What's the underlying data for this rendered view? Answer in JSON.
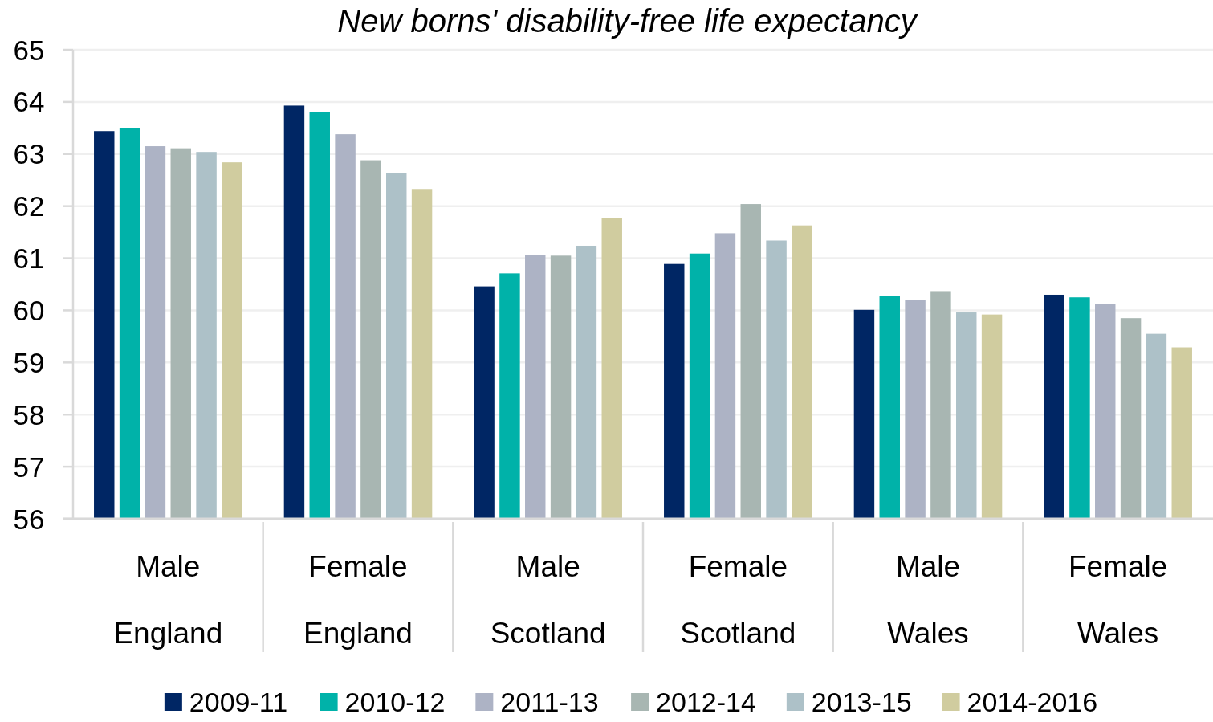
{
  "chart_data": {
    "type": "bar",
    "title": "New borns' disability-free life expectancy",
    "categories": [
      "Male\nEngland",
      "Female\nEngland",
      "Male\nScotland",
      "Female\nScotland",
      "Male\nWales",
      "Female\nWales"
    ],
    "series": [
      {
        "name": "2009-11",
        "color": "#002664",
        "values": [
          63.44,
          63.93,
          60.46,
          60.89,
          60.01,
          60.3
        ]
      },
      {
        "name": "2010-12",
        "color": "#00b2a9",
        "values": [
          63.5,
          63.8,
          60.71,
          61.09,
          60.27,
          60.25
        ]
      },
      {
        "name": "2011-13",
        "color": "#adb3c5",
        "values": [
          63.15,
          63.38,
          61.07,
          61.48,
          60.2,
          60.12
        ]
      },
      {
        "name": "2012-14",
        "color": "#a8b6b2",
        "values": [
          63.11,
          62.88,
          61.05,
          62.04,
          60.37,
          59.85
        ]
      },
      {
        "name": "2013-15",
        "color": "#adc1c8",
        "values": [
          63.04,
          62.64,
          61.24,
          61.34,
          59.96,
          59.55
        ]
      },
      {
        "name": "2014-2016",
        "color": "#d0cc9f",
        "values": [
          62.84,
          62.33,
          61.77,
          61.63,
          59.92,
          59.29
        ]
      }
    ],
    "ylim": [
      56,
      65
    ],
    "yticks": [
      56,
      57,
      58,
      59,
      60,
      61,
      62,
      63,
      64,
      65
    ],
    "grid": "y",
    "legend": "bottom"
  }
}
